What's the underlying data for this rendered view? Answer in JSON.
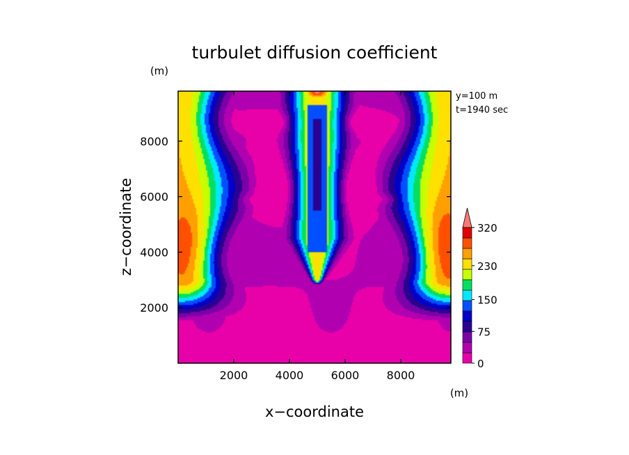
{
  "chart_data": {
    "type": "heatmap",
    "title": "turbulet diffusion coefficient",
    "xlabel": "x−coordinate",
    "ylabel": "z−coordinate",
    "x_unit": "(m)",
    "y_unit": "(m)",
    "xlim": [
      0,
      9800
    ],
    "ylim": [
      0,
      9800
    ],
    "x_ticks": [
      "2000",
      "4000",
      "6000",
      "8000"
    ],
    "y_ticks": [
      "2000",
      "4000",
      "6000",
      "8000"
    ],
    "annotations": [
      "y=100  m",
      "t=1940 sec"
    ],
    "colorbar": {
      "labels": [
        "320",
        "230",
        "150",
        "75",
        "0"
      ],
      "label_values": [
        320,
        230,
        150,
        75,
        0
      ],
      "levels": [
        0,
        25,
        50,
        75,
        100,
        125,
        150,
        175,
        200,
        230,
        260,
        290,
        320
      ],
      "colors": [
        "#e800a8",
        "#b000b0",
        "#7c00a8",
        "#2a0090",
        "#0000c8",
        "#0050ff",
        "#00e8ff",
        "#00e060",
        "#c8ff00",
        "#ffe000",
        "#ffa000",
        "#ff5000",
        "#e00000"
      ],
      "extend_color": "#ff7878",
      "extend": "max"
    },
    "approx_features": {
      "center_jet": {
        "x": 5000,
        "z_base": 3000,
        "z_top": 9800,
        "peak_value": 230,
        "core_value": 130
      },
      "plume_top_center": {
        "x": 5000,
        "z": 9800,
        "value": 330
      },
      "side_maxima": [
        {
          "x": 500,
          "z": 4200,
          "value": 300
        },
        {
          "x": 9300,
          "z": 4200,
          "value": 300
        }
      ],
      "lower_region_value": 10
    }
  }
}
